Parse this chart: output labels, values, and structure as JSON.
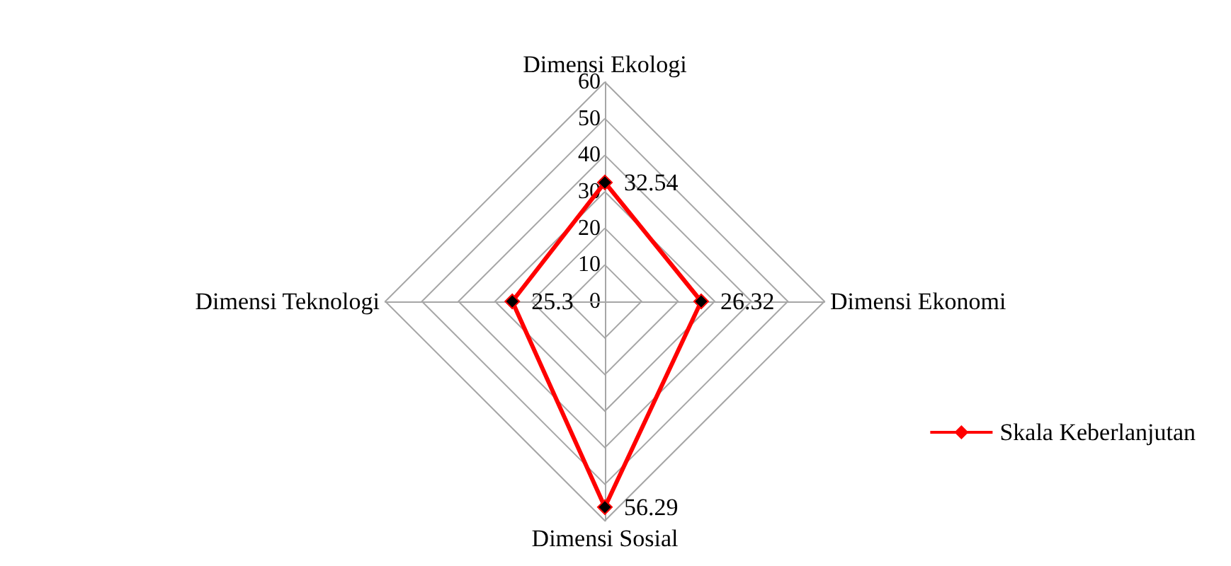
{
  "chart_data": {
    "type": "radar",
    "categories": [
      "Dimensi Ekologi",
      "Dimensi Ekonomi",
      "Dimensi Sosial",
      "Dimensi Teknologi"
    ],
    "series": [
      {
        "name": "Skala Keberlanjutan",
        "color": "#ff0000",
        "values": [
          32.54,
          26.32,
          56.29,
          25.3
        ]
      }
    ],
    "ylim": [
      0,
      60
    ],
    "yticks": [
      0,
      10,
      20,
      30,
      40,
      50,
      60
    ],
    "data_labels": true,
    "legend": "right",
    "marker": "diamond",
    "grid": true
  }
}
